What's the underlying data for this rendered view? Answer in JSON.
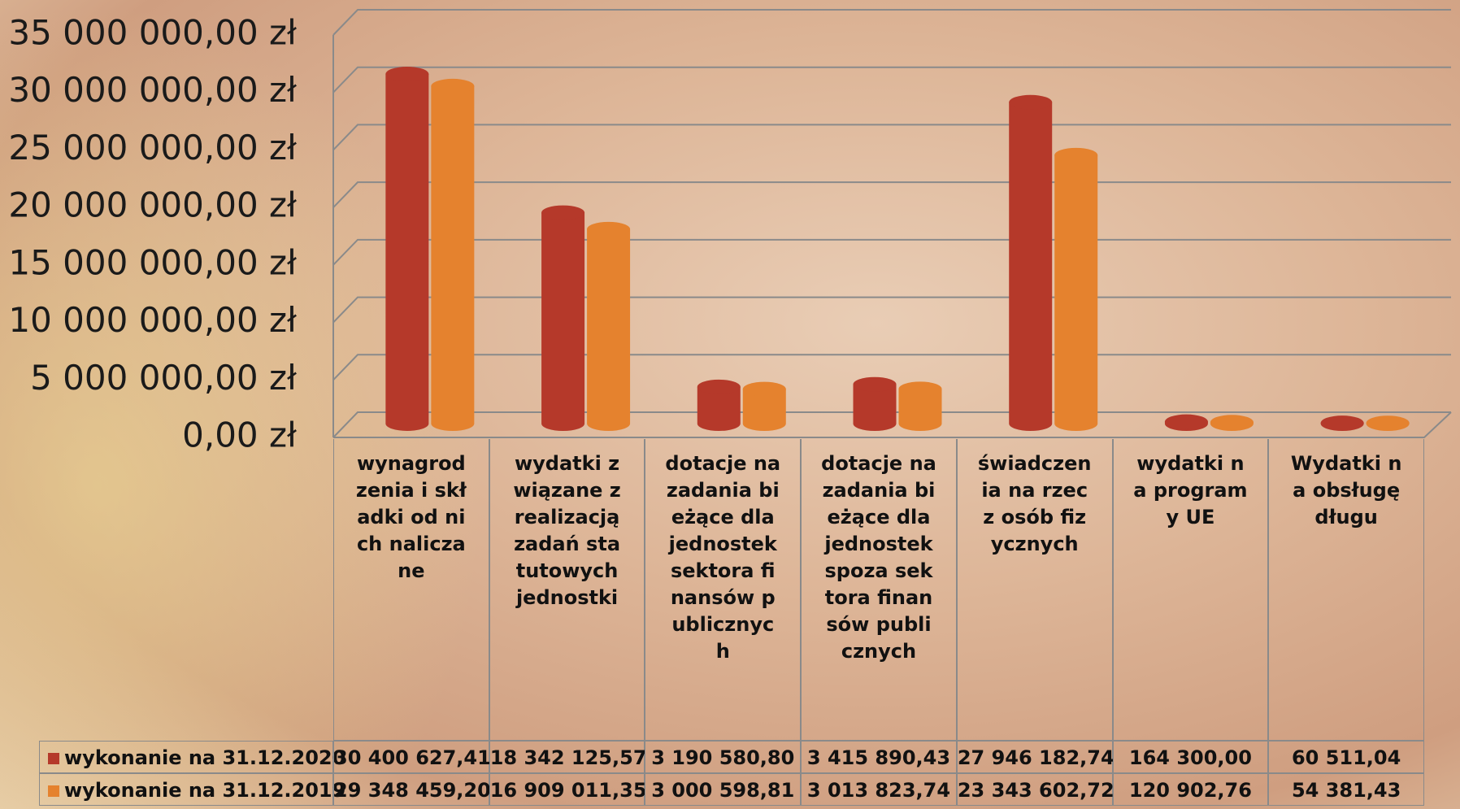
{
  "chart_data": {
    "type": "bar",
    "categories": [
      "wynagrodzenia i składki od nich naliczane",
      "wydatki związane z realizacją zadań statutowych jednostki",
      "dotacje na zadania bieżące dla jednostek sektora finansów publicznych",
      "dotacje na zadania bieżące dla jednostek spoza sektora finansów publicznych",
      "świadczenia na rzecz osób fizycznych",
      "wydatki na programy UE",
      "Wydatki na obsługę długu"
    ],
    "series": [
      {
        "name": "wykonanie na 31.12.2020",
        "color": "#b5392a",
        "values": [
          30400627.41,
          18342125.57,
          3190580.8,
          3415890.43,
          27946182.74,
          164300.0,
          60511.04
        ],
        "value_labels": [
          "30 400 627,41",
          "18 342 125,57",
          "3 190 580,80",
          "3 415 890,43",
          "27 946 182,74",
          "164 300,00",
          "60 511,04"
        ]
      },
      {
        "name": "wykonanie na 31.12.2019",
        "color": "#e5822e",
        "values": [
          29348459.2,
          16909011.35,
          3000598.81,
          3013823.74,
          23343602.72,
          120902.76,
          54381.43
        ],
        "value_labels": [
          "29 348 459,20",
          "16 909 011,35",
          "3 000 598,81",
          "3 013 823,74",
          "23 343 602,72",
          "120 902,76",
          "54 381,43"
        ]
      }
    ],
    "ylim": [
      0,
      35000000
    ],
    "yticks": [
      {
        "value": 0,
        "label": "0,00 zł"
      },
      {
        "value": 5000000,
        "label": "5 000 000,00 zł"
      },
      {
        "value": 10000000,
        "label": "10 000 000,00 zł"
      },
      {
        "value": 15000000,
        "label": "15 000 000,00 zł"
      },
      {
        "value": 20000000,
        "label": "20 000 000,00 zł"
      },
      {
        "value": 25000000,
        "label": "25 000 000,00 zł"
      },
      {
        "value": 30000000,
        "label": "30 000 000,00 zł"
      },
      {
        "value": 35000000,
        "label": "35 000 000,00 zł"
      }
    ],
    "grid": true
  }
}
